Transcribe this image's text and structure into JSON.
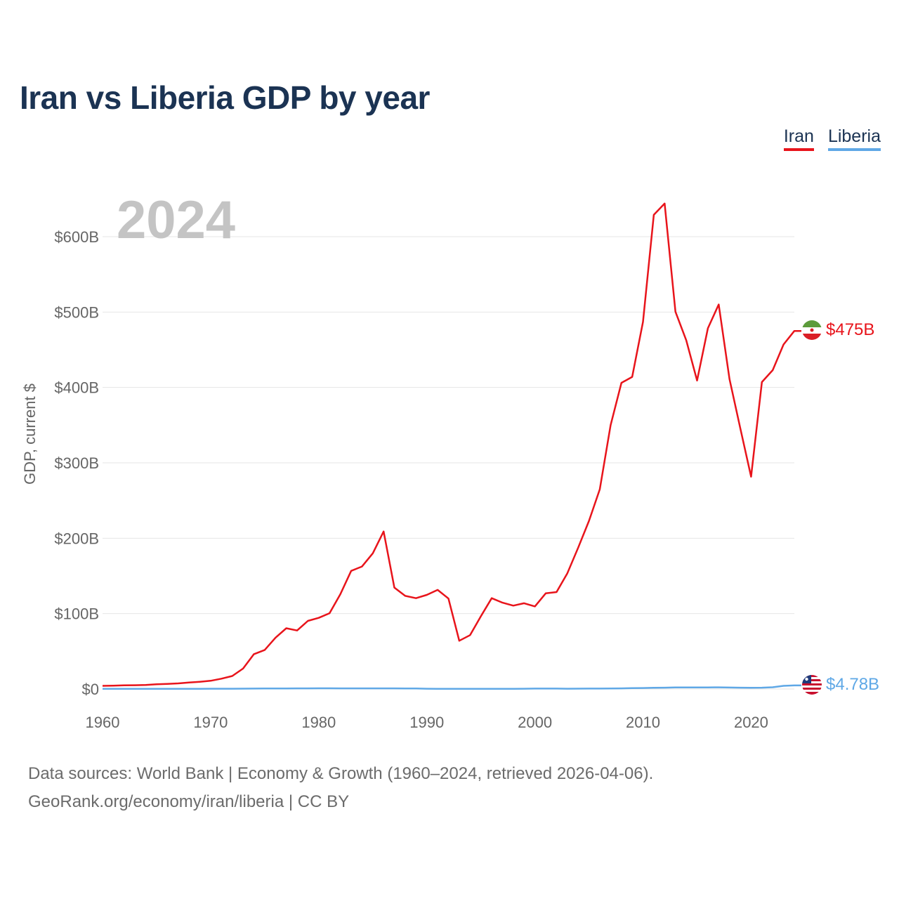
{
  "page": {
    "title": "Iran vs Liberia GDP by year",
    "footer_line1": "Data sources: World Bank | Economy & Growth (1960–2024, retrieved 2026-04-06).",
    "footer_line2": "GeoRank.org/economy/iran/liberia | CC BY"
  },
  "legend": [
    {
      "name": "Iran",
      "color": "#e8141b"
    },
    {
      "name": "Liberia",
      "color": "#5fa8e6"
    }
  ],
  "chart_data": {
    "type": "line",
    "title": "Iran vs Liberia GDP by year",
    "xlabel": "",
    "ylabel": "GDP, current $",
    "current_year_label": "2024",
    "xlim": [
      1960,
      2024
    ],
    "ylim": [
      0,
      650
    ],
    "unit": "billions USD",
    "x_ticks": [
      1960,
      1970,
      1980,
      1990,
      2000,
      2010,
      2020
    ],
    "y_ticks": [
      {
        "value": 0,
        "label": "$0"
      },
      {
        "value": 100,
        "label": "$100B"
      },
      {
        "value": 200,
        "label": "$200B"
      },
      {
        "value": 300,
        "label": "$300B"
      },
      {
        "value": 400,
        "label": "$400B"
      },
      {
        "value": 500,
        "label": "$500B"
      },
      {
        "value": 600,
        "label": "$600B"
      }
    ],
    "grid": true,
    "x": [
      1960,
      1961,
      1962,
      1963,
      1964,
      1965,
      1966,
      1967,
      1968,
      1969,
      1970,
      1971,
      1972,
      1973,
      1974,
      1975,
      1976,
      1977,
      1978,
      1979,
      1980,
      1981,
      1982,
      1983,
      1984,
      1985,
      1986,
      1987,
      1988,
      1989,
      1990,
      1991,
      1992,
      1993,
      1994,
      1995,
      1996,
      1997,
      1998,
      1999,
      2000,
      2001,
      2002,
      2003,
      2004,
      2005,
      2006,
      2007,
      2008,
      2009,
      2010,
      2011,
      2012,
      2013,
      2014,
      2015,
      2016,
      2017,
      2018,
      2019,
      2020,
      2021,
      2022,
      2023,
      2024
    ],
    "series": [
      {
        "name": "Iran",
        "color": "#e8141b",
        "end_label": "$475B",
        "values": [
          4.2,
          4.5,
          4.8,
          5.0,
          5.3,
          6.2,
          6.7,
          7.5,
          8.6,
          9.6,
          10.9,
          13.7,
          17.2,
          27.1,
          46.2,
          51.8,
          68.1,
          80.6,
          77.6,
          90.4,
          94.4,
          100.5,
          125.8,
          156.7,
          162.5,
          180.0,
          209.0,
          134.5,
          123.5,
          120.5,
          124.8,
          131.5,
          120.0,
          64.0,
          71.5,
          96.5,
          120.5,
          114.5,
          110.6,
          113.8,
          109.6,
          126.9,
          128.6,
          153.5,
          187.5,
          223.0,
          265.0,
          350.0,
          406.1,
          414.0,
          487.1,
          629.0,
          644.0,
          500.5,
          462.5,
          409.2,
          478.5,
          510.1,
          411.0,
          346.0,
          281.6,
          407.1,
          423.0,
          457.0,
          475.0
        ]
      },
      {
        "name": "Liberia",
        "color": "#5fa8e6",
        "end_label": "$4.78B",
        "values": [
          0.19,
          0.2,
          0.21,
          0.22,
          0.24,
          0.25,
          0.27,
          0.28,
          0.3,
          0.32,
          0.34,
          0.37,
          0.4,
          0.44,
          0.52,
          0.62,
          0.68,
          0.72,
          0.8,
          0.86,
          0.9,
          0.9,
          0.88,
          0.85,
          0.84,
          0.82,
          0.8,
          0.8,
          0.79,
          0.78,
          0.4,
          0.3,
          0.25,
          0.2,
          0.18,
          0.17,
          0.16,
          0.2,
          0.28,
          0.33,
          0.53,
          0.55,
          0.54,
          0.41,
          0.47,
          0.55,
          0.6,
          0.74,
          0.85,
          1.15,
          1.33,
          1.54,
          1.74,
          2.01,
          2.06,
          2.03,
          2.16,
          2.2,
          2.0,
          1.8,
          1.6,
          1.8,
          2.3,
          4.2,
          4.78
        ]
      }
    ]
  }
}
